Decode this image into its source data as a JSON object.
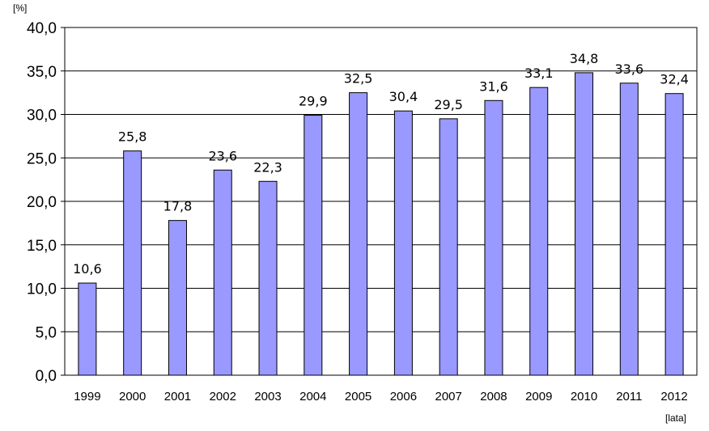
{
  "chart_data": {
    "type": "bar",
    "y_unit_label": "[%]",
    "x_unit_label": "[lata]",
    "categories": [
      "1999",
      "2000",
      "2001",
      "2002",
      "2003",
      "2004",
      "2005",
      "2006",
      "2007",
      "2008",
      "2009",
      "2010",
      "2011",
      "2012"
    ],
    "values": [
      10.6,
      25.8,
      17.8,
      23.6,
      22.3,
      29.9,
      32.5,
      30.4,
      29.5,
      31.6,
      33.1,
      34.8,
      33.6,
      32.4
    ],
    "value_labels": [
      "10,6",
      "25,8",
      "17,8",
      "23,6",
      "22,3",
      "29,9",
      "32,5",
      "30,4",
      "29,5",
      "31,6",
      "33,1",
      "34,8",
      "33,6",
      "32,4"
    ],
    "y_ticks": [
      "0,0",
      "5,0",
      "10,0",
      "15,0",
      "20,0",
      "25,0",
      "30,0",
      "35,0",
      "40,0"
    ],
    "ylim": [
      0,
      40
    ],
    "grid": true,
    "legend": "none",
    "bar_color": "#9999ff",
    "bar_border_color": "#000000"
  }
}
